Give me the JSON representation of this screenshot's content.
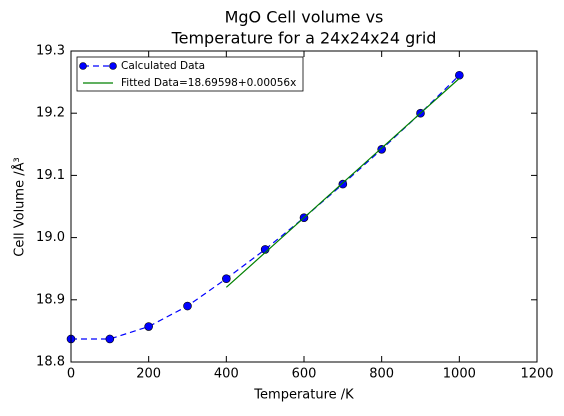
{
  "chart_data": {
    "type": "line",
    "title": [
      "MgO Cell volume vs",
      "Temperature for a 24x24x24 grid"
    ],
    "x_label": "Temperature /K",
    "y_label": "Cell Volume /Å³",
    "series": [
      {
        "name": "Calculated Data",
        "color": "#0000ff",
        "style": "dashed",
        "marker": true,
        "x": [
          0,
          100,
          200,
          300,
          400,
          500,
          600,
          700,
          800,
          900,
          1000
        ],
        "values": [
          18.837,
          18.837,
          18.857,
          18.89,
          18.934,
          18.981,
          19.032,
          19.086,
          19.142,
          19.2,
          19.261
        ]
      },
      {
        "name": "Fitted Data=18.69598+0.00056x",
        "color": "#008000",
        "style": "solid",
        "marker": false,
        "x": [
          400,
          500,
          600,
          700,
          800,
          900,
          1000
        ],
        "values": [
          18.92,
          18.976,
          19.032,
          19.088,
          19.144,
          19.2,
          19.256
        ]
      }
    ],
    "xlim": [
      0,
      1200
    ],
    "xticks": [
      0,
      200,
      400,
      600,
      800,
      1000,
      1200
    ],
    "ylim": [
      18.8,
      19.3
    ],
    "yticks": [
      18.8,
      18.9,
      {
        "value": 19,
        "label": "19.0"
      },
      19.1,
      19.2,
      19.3
    ],
    "grid": false,
    "legend": "upper-left"
  }
}
